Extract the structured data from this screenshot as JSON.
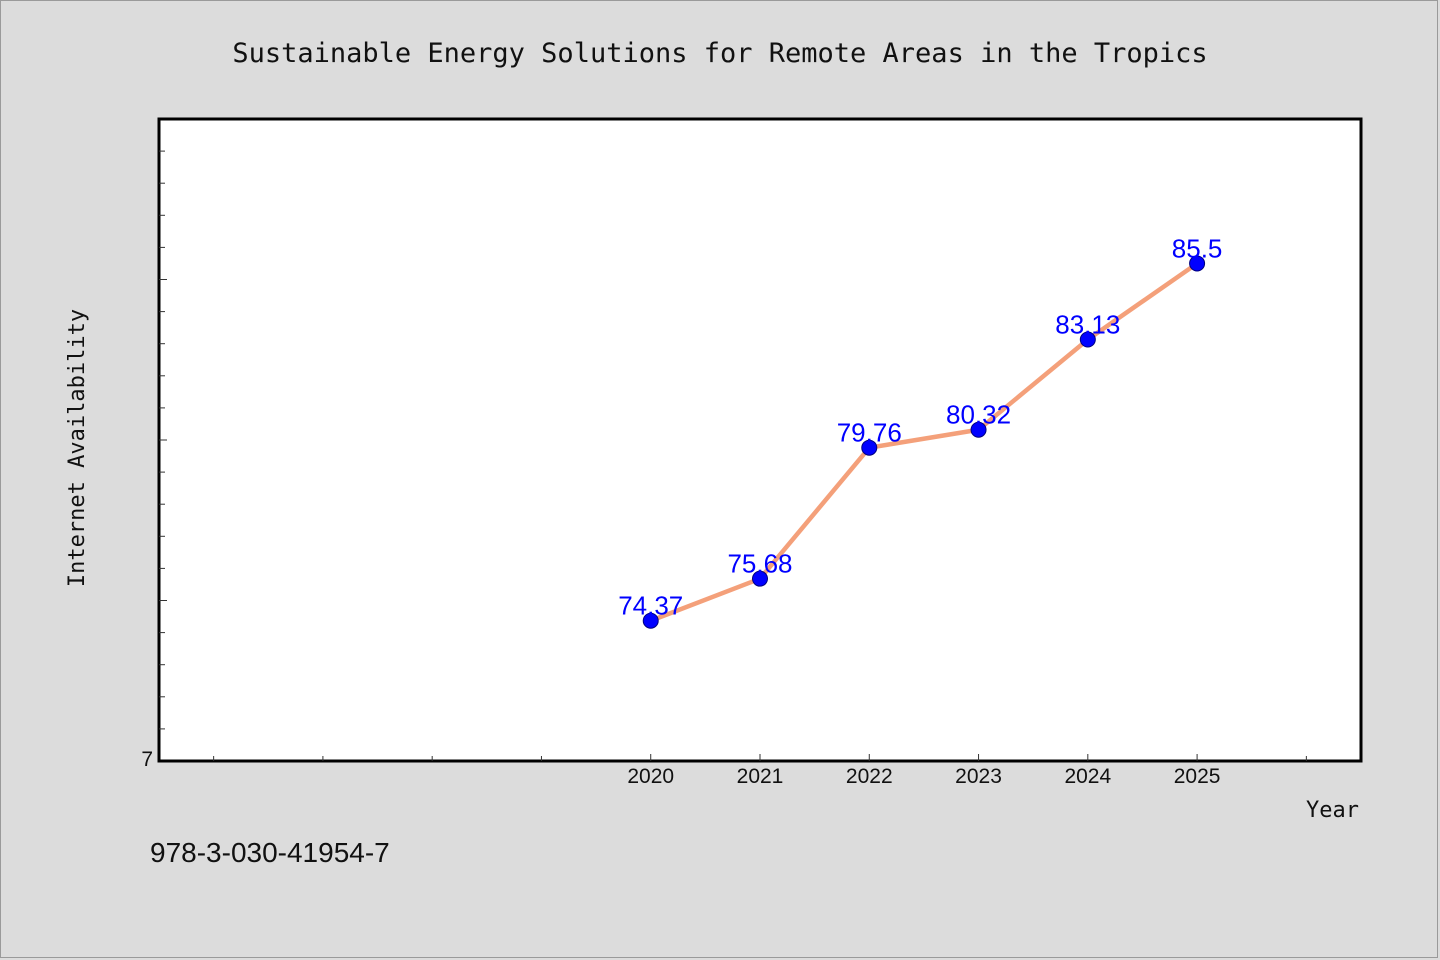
{
  "colors": {
    "background": "#dcdcdc",
    "plot_background": "#ffffff",
    "line": "#f4a07a",
    "marker": "#0000ff",
    "data_label": "#0000ff"
  },
  "footer": {
    "code": "978-3-030-41954-7"
  },
  "chart_data": {
    "type": "line",
    "title": "Sustainable Energy Solutions for Remote Areas in the Tropics",
    "xlabel": "Year",
    "ylabel": "Internet Availability",
    "x": [
      2020,
      2021,
      2022,
      2023,
      2024,
      2025
    ],
    "x_tick_labels": [
      "2020",
      "2021",
      "2022",
      "2023",
      "2024",
      "2025"
    ],
    "xlim": [
      2015.5,
      2026.5
    ],
    "y_tick_labels": [
      "7"
    ],
    "ylim": [
      70,
      90
    ],
    "grid": false,
    "series": [
      {
        "values": [
          74.37,
          75.68,
          79.76,
          80.32,
          83.13,
          85.5
        ],
        "labels": [
          "74.37",
          "75.68",
          "79.76",
          "80.32",
          "83.13",
          "85.5"
        ]
      }
    ]
  }
}
